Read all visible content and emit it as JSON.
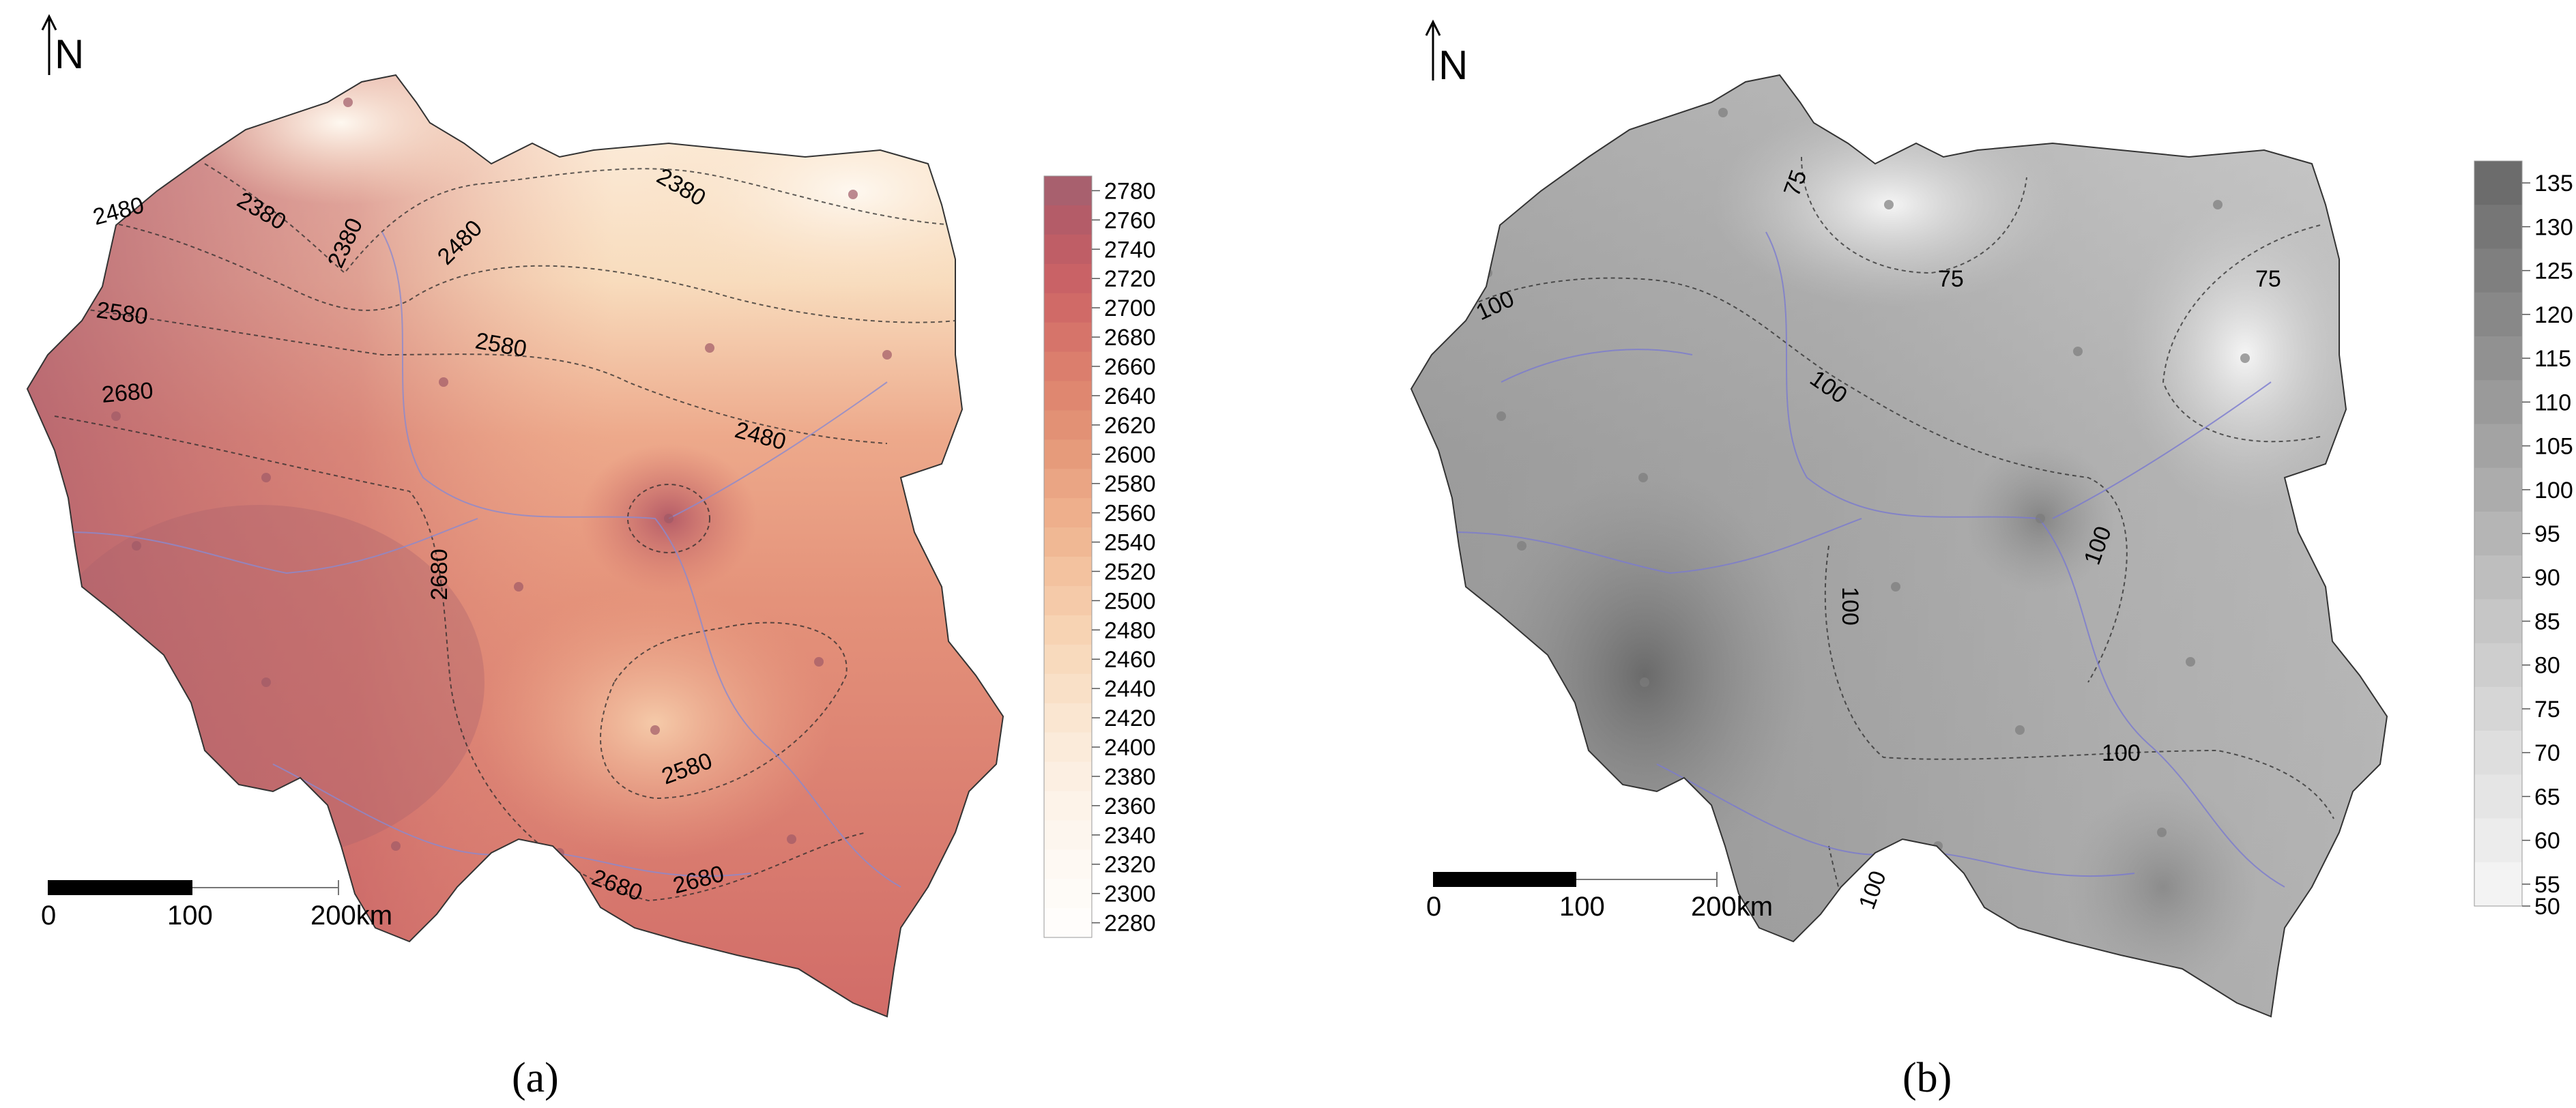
{
  "panels": [
    {
      "id": "a",
      "caption": "(a)",
      "north_label": "N",
      "scale_bar": {
        "ticks": [
          "0",
          "100",
          "200km"
        ]
      },
      "legend": {
        "labels": [
          "2780",
          "2760",
          "2740",
          "2720",
          "2700",
          "2680",
          "2660",
          "2640",
          "2620",
          "2600",
          "2580",
          "2560",
          "2540",
          "2520",
          "2500",
          "2480",
          "2460",
          "2440",
          "2420",
          "2400",
          "2380",
          "2360",
          "2340",
          "2320",
          "2300",
          "2280"
        ],
        "colors": [
          "#a8606e",
          "#b45c68",
          "#bf5e66",
          "#c96266",
          "#d06a67",
          "#d6746a",
          "#db7e6d",
          "#df8770",
          "#e29175",
          "#e69b7b",
          "#ea a584",
          "#eeaf8c",
          "#f0b894",
          "#f3c29f",
          "#f5caa9",
          "#f7d3b3",
          "#f8dabd",
          "#f9e0c7",
          "#fae6d1",
          "#fbebda",
          "#fcefe2",
          "#fdf3e9",
          "#fdf6ee",
          "#fef9f3",
          "#fefbf7",
          "#fffdfb"
        ]
      },
      "contour_labels": [
        "2380",
        "2380",
        "2380",
        "2480",
        "2480",
        "2480",
        "2580",
        "2580",
        "2580",
        "2680",
        "2680",
        "2680",
        "2680"
      ],
      "colors": {
        "base": "#e89a83",
        "north": "#fbe7d2",
        "south": "#c9616a"
      }
    },
    {
      "id": "b",
      "caption": "(b)",
      "north_label": "N",
      "scale_bar": {
        "ticks": [
          "0",
          "100",
          "200km"
        ]
      },
      "legend": {
        "labels": [
          "135",
          "130",
          "125",
          "120",
          "115",
          "110",
          "105",
          "100",
          "95",
          "90",
          "85",
          "80",
          "75",
          "70",
          "65",
          "60",
          "55",
          "50"
        ],
        "colors": [
          "#6c6c6c",
          "#767676",
          "#7f7f7f",
          "#888888",
          "#919191",
          "#9a9a9a",
          "#a3a3a3",
          "#acacac",
          "#b5b5b5",
          "#bebebe",
          "#c6c6c6",
          "#cecece",
          "#d6d6d6",
          "#dedede",
          "#e5e5e5",
          "#ececec",
          "#f3f3f3",
          "#f9f9f9"
        ]
      },
      "contour_labels": [
        "75",
        "75",
        "75",
        "100",
        "100",
        "100",
        "100",
        "100",
        "100"
      ],
      "colors": {
        "base": "#a6a6a6",
        "light": "#e2e2e2",
        "dark": "#7a7a7a"
      }
    }
  ]
}
